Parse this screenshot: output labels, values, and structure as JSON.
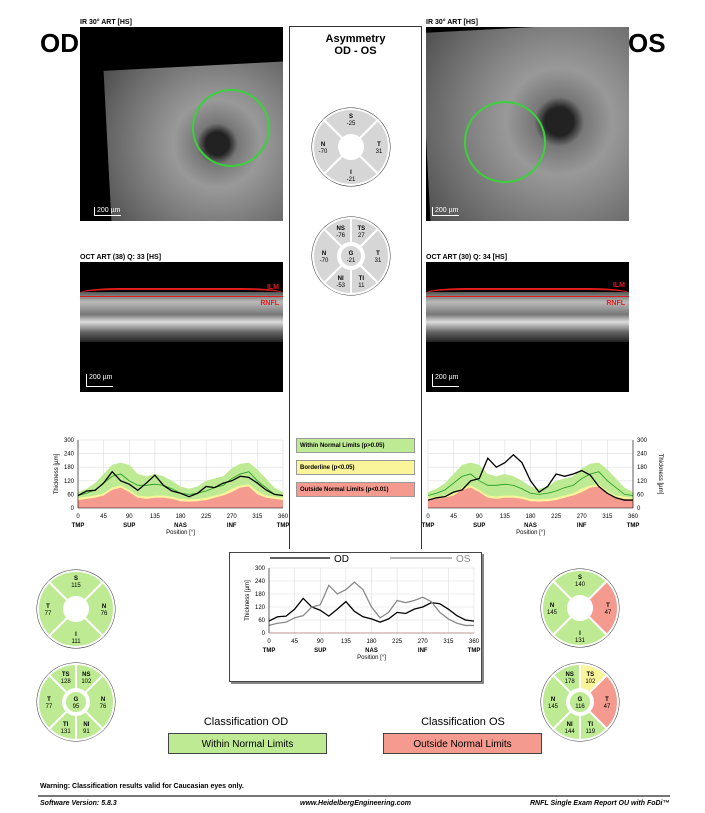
{
  "colors": {
    "within": "#bdea93",
    "borderline": "#faf49a",
    "outside": "#f49a8f",
    "neutral": "#d6d6d6",
    "mean": "#1e9a1e",
    "od_line": "#000000",
    "os_line": "#8a8a8a"
  },
  "od": {
    "eye_label": "OD",
    "ir_label": "IR 30° ART [HS]",
    "ir_scale": "200 µm",
    "oct_label": "OCT ART (38) Q: 33 [HS]",
    "oct_scale": "200 µm",
    "ilm": "ILM",
    "rnfl": "RNFL",
    "sectors4": [
      {
        "key": "S",
        "label": "S",
        "value": "115",
        "status": "within"
      },
      {
        "key": "N",
        "label": "N",
        "value": "76",
        "status": "within"
      },
      {
        "key": "I",
        "label": "I",
        "value": "111",
        "status": "within"
      },
      {
        "key": "T",
        "label": "T",
        "value": "77",
        "status": "within"
      }
    ],
    "sectors6": [
      {
        "key": "TS",
        "label": "TS",
        "value": "128",
        "status": "within"
      },
      {
        "key": "NS",
        "label": "NS",
        "value": "102",
        "status": "within"
      },
      {
        "key": "N",
        "label": "N",
        "value": "76",
        "status": "within"
      },
      {
        "key": "NI",
        "label": "NI",
        "value": "91",
        "status": "within"
      },
      {
        "key": "TI",
        "label": "TI",
        "value": "131",
        "status": "within"
      },
      {
        "key": "T",
        "label": "T",
        "value": "77",
        "status": "within"
      }
    ],
    "global": {
      "label": "G",
      "value": "95",
      "status": "within"
    },
    "classification_title": "Classification OD",
    "classification": "Within Normal Limits",
    "classification_status": "within"
  },
  "os": {
    "eye_label": "OS",
    "ir_label": "IR 30° ART [HS]",
    "ir_scale": "200 µm",
    "oct_label": "OCT ART (30) Q: 34 [HS]",
    "oct_scale": "200 µm",
    "ilm": "ILM",
    "rnfl": "RNFL",
    "sectors4": [
      {
        "key": "S",
        "label": "S",
        "value": "140",
        "status": "within"
      },
      {
        "key": "T",
        "label": "T",
        "value": "47",
        "status": "outside"
      },
      {
        "key": "I",
        "label": "I",
        "value": "131",
        "status": "within"
      },
      {
        "key": "N",
        "label": "N",
        "value": "145",
        "status": "within"
      }
    ],
    "sectors6": [
      {
        "key": "NS",
        "label": "NS",
        "value": "178",
        "status": "within"
      },
      {
        "key": "TS",
        "label": "TS",
        "value": "102",
        "status": "borderline"
      },
      {
        "key": "T",
        "label": "T",
        "value": "47",
        "status": "outside"
      },
      {
        "key": "TI",
        "label": "TI",
        "value": "119",
        "status": "within"
      },
      {
        "key": "NI",
        "label": "NI",
        "value": "144",
        "status": "within"
      },
      {
        "key": "N",
        "label": "N",
        "value": "145",
        "status": "within"
      }
    ],
    "global": {
      "label": "G",
      "value": "116",
      "status": "within"
    },
    "classification_title": "Classification OS",
    "classification": "Outside Normal Limits",
    "classification_status": "outside"
  },
  "asymmetry": {
    "title": "Asymmetry",
    "subtitle": "OD - OS",
    "sectors4": [
      {
        "key": "S",
        "label": "S",
        "value": "-25",
        "status": "neutral"
      },
      {
        "key": "T",
        "label": "T",
        "value": "31",
        "status": "neutral"
      },
      {
        "key": "I",
        "label": "I",
        "value": "-21",
        "status": "neutral"
      },
      {
        "key": "N",
        "label": "N",
        "value": "-70",
        "status": "neutral"
      }
    ],
    "sectors6": [
      {
        "key": "NS",
        "label": "NS",
        "value": "-76",
        "status": "neutral"
      },
      {
        "key": "TS",
        "label": "TS",
        "value": "27",
        "status": "neutral"
      },
      {
        "key": "T",
        "label": "T",
        "value": "31",
        "status": "neutral"
      },
      {
        "key": "TI",
        "label": "TI",
        "value": "11",
        "status": "neutral"
      },
      {
        "key": "NI",
        "label": "NI",
        "value": "-53",
        "status": "neutral"
      },
      {
        "key": "N",
        "label": "N",
        "value": "-70",
        "status": "neutral"
      }
    ],
    "global": {
      "label": "G",
      "value": "-21",
      "status": "neutral"
    }
  },
  "legend": [
    {
      "label": "Within Normal Limits (p>0.05)",
      "status": "within"
    },
    {
      "label": "Borderline (p<0.05)",
      "status": "borderline"
    },
    {
      "label": "Outside Normal Limits (p<0.01)",
      "status": "outside"
    }
  ],
  "chart_data": [
    {
      "id": "od",
      "type": "line",
      "title": "",
      "xlabel": "Position [°]",
      "ylabel": "Thickness [µm]",
      "xlim": [
        0,
        360
      ],
      "ylim": [
        0,
        300
      ],
      "xticks": [
        0,
        45,
        90,
        135,
        180,
        225,
        270,
        315,
        360
      ],
      "yticks": [
        0,
        60,
        120,
        180,
        240,
        300
      ],
      "region_labels": [
        "TMP",
        "SUP",
        "NAS",
        "INF",
        "TMP"
      ],
      "grid": true,
      "x": [
        0,
        15,
        30,
        45,
        60,
        75,
        90,
        105,
        120,
        135,
        150,
        165,
        180,
        195,
        210,
        225,
        240,
        255,
        270,
        285,
        300,
        315,
        330,
        345,
        360
      ],
      "normal_upper": [
        70,
        85,
        110,
        150,
        190,
        200,
        190,
        150,
        140,
        150,
        140,
        120,
        95,
        85,
        95,
        120,
        130,
        140,
        175,
        195,
        200,
        170,
        130,
        90,
        70
      ],
      "borderline_upper": [
        45,
        50,
        55,
        65,
        90,
        100,
        80,
        55,
        50,
        55,
        55,
        50,
        40,
        38,
        40,
        45,
        55,
        65,
        85,
        100,
        105,
        75,
        55,
        50,
        45
      ],
      "outside_upper": [
        35,
        40,
        45,
        55,
        80,
        90,
        70,
        45,
        40,
        45,
        45,
        40,
        30,
        28,
        30,
        35,
        45,
        55,
        70,
        90,
        95,
        60,
        45,
        40,
        35
      ],
      "mean": [
        55,
        65,
        80,
        110,
        140,
        150,
        120,
        100,
        100,
        105,
        100,
        85,
        65,
        60,
        65,
        75,
        90,
        100,
        130,
        150,
        160,
        120,
        90,
        60,
        55
      ],
      "series": [
        {
          "name": "OD",
          "values": [
            55,
            75,
            78,
            110,
            160,
            120,
            105,
            78,
            110,
            145,
            100,
            75,
            65,
            50,
            65,
            95,
            90,
            110,
            120,
            140,
            135,
            110,
            80,
            60,
            55
          ]
        }
      ]
    },
    {
      "id": "os",
      "type": "line",
      "title": "",
      "xlabel": "Position [°]",
      "ylabel": "Thickness [µm]",
      "xlim": [
        0,
        360
      ],
      "ylim": [
        0,
        300
      ],
      "xticks": [
        0,
        45,
        90,
        135,
        180,
        225,
        270,
        315,
        360
      ],
      "yticks": [
        0,
        60,
        120,
        180,
        240,
        300
      ],
      "region_labels": [
        "TMP",
        "SUP",
        "NAS",
        "INF",
        "TMP"
      ],
      "grid": true,
      "x": [
        0,
        15,
        30,
        45,
        60,
        75,
        90,
        105,
        120,
        135,
        150,
        165,
        180,
        195,
        210,
        225,
        240,
        255,
        270,
        285,
        300,
        315,
        330,
        345,
        360
      ],
      "normal_upper": [
        70,
        85,
        110,
        150,
        190,
        200,
        190,
        150,
        140,
        150,
        140,
        120,
        95,
        85,
        95,
        120,
        130,
        140,
        175,
        195,
        200,
        170,
        130,
        90,
        70
      ],
      "borderline_upper": [
        45,
        50,
        55,
        65,
        90,
        100,
        80,
        55,
        50,
        55,
        55,
        50,
        40,
        38,
        40,
        45,
        55,
        65,
        85,
        100,
        105,
        75,
        55,
        50,
        45
      ],
      "outside_upper": [
        35,
        40,
        45,
        55,
        80,
        90,
        70,
        45,
        40,
        45,
        45,
        40,
        30,
        28,
        30,
        35,
        45,
        55,
        70,
        90,
        95,
        60,
        45,
        40,
        35
      ],
      "mean": [
        55,
        65,
        80,
        110,
        140,
        150,
        120,
        100,
        100,
        105,
        100,
        85,
        65,
        60,
        65,
        75,
        90,
        100,
        130,
        150,
        160,
        120,
        90,
        60,
        55
      ],
      "series": [
        {
          "name": "OS",
          "values": [
            35,
            45,
            50,
            70,
            80,
            120,
            130,
            220,
            180,
            200,
            235,
            200,
            120,
            70,
            95,
            150,
            140,
            150,
            165,
            145,
            95,
            65,
            45,
            35,
            35
          ]
        }
      ]
    },
    {
      "id": "cmp",
      "type": "line",
      "title": "",
      "xlabel": "Position [°]",
      "ylabel": "Thickness [µm]",
      "xlim": [
        0,
        360
      ],
      "ylim": [
        0,
        300
      ],
      "xticks": [
        0,
        45,
        90,
        135,
        180,
        225,
        270,
        315,
        360
      ],
      "yticks": [
        0,
        60,
        120,
        180,
        240,
        300
      ],
      "region_labels": [
        "TMP",
        "SUP",
        "NAS",
        "INF",
        "TMP"
      ],
      "grid": true,
      "legend": [
        "OD",
        "OS"
      ],
      "legend_position": "top",
      "x": [
        0,
        15,
        30,
        45,
        60,
        75,
        90,
        105,
        120,
        135,
        150,
        165,
        180,
        195,
        210,
        225,
        240,
        255,
        270,
        285,
        300,
        315,
        330,
        345,
        360
      ],
      "series": [
        {
          "name": "OD",
          "values": [
            55,
            75,
            78,
            110,
            160,
            120,
            105,
            78,
            110,
            145,
            100,
            75,
            65,
            50,
            65,
            95,
            90,
            110,
            120,
            140,
            135,
            110,
            80,
            60,
            55
          ]
        },
        {
          "name": "OS",
          "values": [
            35,
            45,
            50,
            70,
            80,
            120,
            130,
            220,
            180,
            200,
            235,
            200,
            120,
            70,
            95,
            150,
            140,
            150,
            165,
            145,
            95,
            65,
            45,
            35,
            35
          ]
        }
      ]
    }
  ],
  "footer": {
    "warning": "Warning: Classification results valid for Caucasian eyes only.",
    "software": "Software Version: 5.8.3",
    "website": "www.HeidelbergEngineering.com",
    "report": "RNFL Single Exam Report OU with FoDi™"
  }
}
